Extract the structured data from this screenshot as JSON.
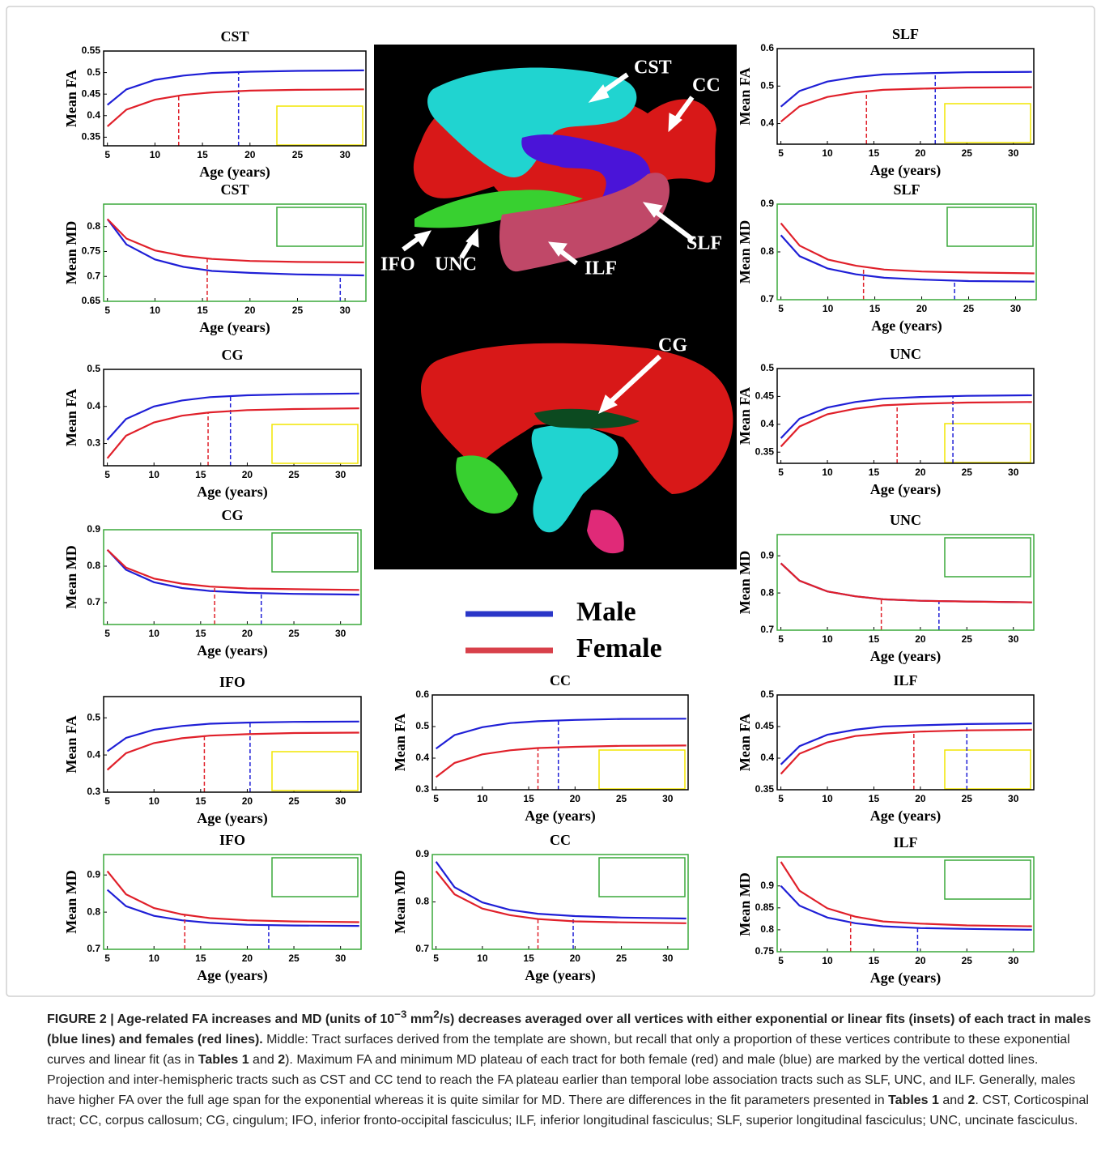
{
  "chart_data": [
    {
      "type": "line",
      "title": "CST",
      "ylabel": "Mean FA",
      "xlabel": "Age (years)",
      "frame": "#000000",
      "inset": "#f2e600",
      "x": [
        5,
        7,
        10,
        13,
        16,
        20,
        25,
        32
      ],
      "xlim": [
        4.6,
        32.2
      ],
      "xticks": [
        5,
        10,
        15,
        20,
        25,
        30
      ],
      "ylim": [
        0.33,
        0.55
      ],
      "yticks": [
        0.35,
        0.4,
        0.45,
        0.5,
        0.55
      ],
      "series": [
        {
          "color": "#1f1fd6",
          "values": [
            0.425,
            0.461,
            0.483,
            0.493,
            0.499,
            0.502,
            0.504,
            0.505
          ],
          "plateau_age": 18.8
        },
        {
          "color": "#e0202a",
          "values": [
            0.375,
            0.414,
            0.437,
            0.448,
            0.454,
            0.458,
            0.46,
            0.461
          ],
          "plateau_age": 12.5
        }
      ]
    },
    {
      "type": "line",
      "title": "CST",
      "ylabel": "Mean MD",
      "xlabel": "Age (years)",
      "frame": "#3aa83a",
      "inset": "#3aa83a",
      "x": [
        5,
        7,
        10,
        13,
        16,
        20,
        25,
        32
      ],
      "xlim": [
        4.6,
        32.2
      ],
      "xticks": [
        5,
        10,
        15,
        20,
        25,
        30
      ],
      "ylim": [
        0.65,
        0.845
      ],
      "yticks": [
        0.65,
        0.7,
        0.75,
        0.8
      ],
      "series": [
        {
          "color": "#1f1fd6",
          "values": [
            0.815,
            0.764,
            0.734,
            0.719,
            0.711,
            0.707,
            0.704,
            0.702
          ],
          "plateau_age": 29.5
        },
        {
          "color": "#e0202a",
          "values": [
            0.815,
            0.776,
            0.752,
            0.741,
            0.735,
            0.731,
            0.729,
            0.728
          ],
          "plateau_age": 15.5
        }
      ]
    },
    {
      "type": "line",
      "title": "CG",
      "ylabel": "Mean FA",
      "xlabel": "Age (years)",
      "frame": "#000000",
      "inset": "#f2e600",
      "x": [
        5,
        7,
        10,
        13,
        16,
        20,
        25,
        32
      ],
      "xlim": [
        4.6,
        32.2
      ],
      "xticks": [
        5,
        10,
        15,
        20,
        25,
        30
      ],
      "ylim": [
        0.24,
        0.5
      ],
      "yticks": [
        0.3,
        0.4,
        0.5
      ],
      "series": [
        {
          "color": "#1f1fd6",
          "values": [
            0.31,
            0.366,
            0.4,
            0.416,
            0.425,
            0.43,
            0.433,
            0.435
          ],
          "plateau_age": 18.2
        },
        {
          "color": "#e0202a",
          "values": [
            0.26,
            0.321,
            0.357,
            0.375,
            0.384,
            0.39,
            0.393,
            0.395
          ],
          "plateau_age": 15.8
        }
      ]
    },
    {
      "type": "line",
      "title": "CG",
      "ylabel": "Mean MD",
      "xlabel": "Age (years)",
      "frame": "#3aa83a",
      "inset": "#3aa83a",
      "x": [
        5,
        7,
        10,
        13,
        16,
        20,
        25,
        32
      ],
      "xlim": [
        4.6,
        32.2
      ],
      "xticks": [
        5,
        10,
        15,
        20,
        25,
        30
      ],
      "ylim": [
        0.64,
        0.9
      ],
      "yticks": [
        0.7,
        0.8,
        0.9
      ],
      "series": [
        {
          "color": "#1f1fd6",
          "values": [
            0.845,
            0.79,
            0.756,
            0.74,
            0.732,
            0.727,
            0.724,
            0.722
          ],
          "plateau_age": 21.5
        },
        {
          "color": "#e0202a",
          "values": [
            0.845,
            0.796,
            0.766,
            0.752,
            0.744,
            0.739,
            0.737,
            0.735
          ],
          "plateau_age": 16.5
        }
      ]
    },
    {
      "type": "line",
      "title": "IFO",
      "ylabel": "Mean FA",
      "xlabel": "Age (years)",
      "frame": "#000000",
      "inset": "#f2e600",
      "x": [
        5,
        7,
        10,
        13,
        16,
        20,
        25,
        32
      ],
      "xlim": [
        4.6,
        32.2
      ],
      "xticks": [
        5,
        10,
        15,
        20,
        25,
        30
      ],
      "ylim": [
        0.3,
        0.557
      ],
      "yticks": [
        0.3,
        0.4,
        0.5
      ],
      "series": [
        {
          "color": "#1f1fd6",
          "values": [
            0.41,
            0.446,
            0.468,
            0.478,
            0.484,
            0.487,
            0.489,
            0.49
          ],
          "plateau_age": 20.3
        },
        {
          "color": "#e0202a",
          "values": [
            0.36,
            0.405,
            0.432,
            0.445,
            0.452,
            0.456,
            0.459,
            0.46
          ],
          "plateau_age": 15.4
        }
      ]
    },
    {
      "type": "line",
      "title": "IFO",
      "ylabel": "Mean MD",
      "xlabel": "Age (years)",
      "frame": "#3aa83a",
      "inset": "#3aa83a",
      "x": [
        5,
        7,
        10,
        13,
        16,
        20,
        25,
        32
      ],
      "xlim": [
        4.6,
        32.2
      ],
      "xticks": [
        5,
        10,
        15,
        20,
        25,
        30
      ],
      "ylim": [
        0.7,
        0.955
      ],
      "yticks": [
        0.7,
        0.8,
        0.9
      ],
      "series": [
        {
          "color": "#1f1fd6",
          "values": [
            0.86,
            0.816,
            0.79,
            0.778,
            0.771,
            0.766,
            0.764,
            0.763
          ],
          "plateau_age": 22.3
        },
        {
          "color": "#e0202a",
          "values": [
            0.91,
            0.848,
            0.811,
            0.794,
            0.784,
            0.778,
            0.775,
            0.773
          ],
          "plateau_age": 13.3
        }
      ]
    },
    {
      "type": "line",
      "title": "CC",
      "ylabel": "Mean FA",
      "xlabel": "Age (years)",
      "frame": "#000000",
      "inset": "#f2e600",
      "x": [
        5,
        7,
        10,
        13,
        16,
        20,
        25,
        32
      ],
      "xlim": [
        4.6,
        32.2
      ],
      "xticks": [
        5,
        10,
        15,
        20,
        25,
        30
      ],
      "ylim": [
        0.3,
        0.6
      ],
      "yticks": [
        0.3,
        0.4,
        0.5,
        0.6
      ],
      "series": [
        {
          "color": "#1f1fd6",
          "values": [
            0.43,
            0.473,
            0.498,
            0.511,
            0.517,
            0.521,
            0.524,
            0.525
          ],
          "plateau_age": 18.2
        },
        {
          "color": "#e0202a",
          "values": [
            0.34,
            0.385,
            0.412,
            0.425,
            0.432,
            0.436,
            0.439,
            0.44
          ],
          "plateau_age": 16
        }
      ]
    },
    {
      "type": "line",
      "title": "CC",
      "ylabel": "Mean MD",
      "xlabel": "Age (years)",
      "frame": "#3aa83a",
      "inset": "#3aa83a",
      "x": [
        5,
        7,
        10,
        13,
        16,
        20,
        25,
        32
      ],
      "xlim": [
        4.6,
        32.2
      ],
      "xticks": [
        5,
        10,
        15,
        20,
        25,
        30
      ],
      "ylim": [
        0.7,
        0.9
      ],
      "yticks": [
        0.7,
        0.8,
        0.9
      ],
      "series": [
        {
          "color": "#1f1fd6",
          "values": [
            0.885,
            0.831,
            0.799,
            0.783,
            0.775,
            0.77,
            0.767,
            0.765
          ],
          "plateau_age": 19.8
        },
        {
          "color": "#e0202a",
          "values": [
            0.865,
            0.816,
            0.786,
            0.772,
            0.764,
            0.759,
            0.757,
            0.755
          ],
          "plateau_age": 16
        }
      ]
    },
    {
      "type": "line",
      "title": "SLF",
      "ylabel": "Mean FA",
      "xlabel": "Age (years)",
      "frame": "#000000",
      "inset": "#f2e600",
      "x": [
        5,
        7,
        10,
        13,
        16,
        20,
        25,
        32
      ],
      "xlim": [
        4.6,
        32.2
      ],
      "xticks": [
        5,
        10,
        15,
        20,
        25,
        30
      ],
      "ylim": [
        0.345,
        0.6
      ],
      "yticks": [
        0.4,
        0.5,
        0.6
      ],
      "series": [
        {
          "color": "#1f1fd6",
          "values": [
            0.445,
            0.487,
            0.512,
            0.524,
            0.531,
            0.534,
            0.537,
            0.538
          ],
          "plateau_age": 21.6
        },
        {
          "color": "#e0202a",
          "values": [
            0.405,
            0.446,
            0.471,
            0.483,
            0.49,
            0.493,
            0.496,
            0.497
          ],
          "plateau_age": 14.2
        }
      ]
    },
    {
      "type": "line",
      "title": "SLF",
      "ylabel": "Mean MD",
      "xlabel": "Age (years)",
      "frame": "#3aa83a",
      "inset": "#3aa83a",
      "x": [
        5,
        7,
        10,
        13,
        16,
        20,
        25,
        32
      ],
      "xlim": [
        4.6,
        32.2
      ],
      "xticks": [
        5,
        10,
        15,
        20,
        25,
        30
      ],
      "ylim": [
        0.7,
        0.9
      ],
      "yticks": [
        0.7,
        0.8,
        0.9
      ],
      "series": [
        {
          "color": "#1f1fd6",
          "values": [
            0.835,
            0.791,
            0.765,
            0.753,
            0.746,
            0.742,
            0.739,
            0.738
          ],
          "plateau_age": 23.5
        },
        {
          "color": "#e0202a",
          "values": [
            0.86,
            0.813,
            0.784,
            0.771,
            0.763,
            0.759,
            0.757,
            0.755
          ],
          "plateau_age": 13.8
        }
      ]
    },
    {
      "type": "line",
      "title": "UNC",
      "ylabel": "Mean FA",
      "xlabel": "Age (years)",
      "frame": "#000000",
      "inset": "#f2e600",
      "x": [
        5,
        7,
        10,
        13,
        16,
        20,
        25,
        32
      ],
      "xlim": [
        4.6,
        32.2
      ],
      "xticks": [
        5,
        10,
        15,
        20,
        25,
        30
      ],
      "ylim": [
        0.33,
        0.5
      ],
      "yticks": [
        0.35,
        0.4,
        0.45,
        0.5
      ],
      "series": [
        {
          "color": "#1f1fd6",
          "values": [
            0.375,
            0.41,
            0.43,
            0.44,
            0.446,
            0.449,
            0.451,
            0.452
          ],
          "plateau_age": 23.5
        },
        {
          "color": "#e0202a",
          "values": [
            0.36,
            0.396,
            0.418,
            0.428,
            0.434,
            0.437,
            0.439,
            0.44
          ],
          "plateau_age": 17.5
        }
      ]
    },
    {
      "type": "line",
      "title": "UNC",
      "ylabel": "Mean MD",
      "xlabel": "Age (years)",
      "frame": "#3aa83a",
      "inset": "#3aa83a",
      "x": [
        5,
        7,
        10,
        13,
        16,
        20,
        25,
        32
      ],
      "xlim": [
        4.6,
        32.2
      ],
      "xticks": [
        5,
        10,
        15,
        20,
        25,
        30
      ],
      "ylim": [
        0.7,
        0.957
      ],
      "yticks": [
        0.7,
        0.8,
        0.9
      ],
      "series": [
        {
          "color": "#1f1fd6",
          "values": [
            0.88,
            0.833,
            0.804,
            0.791,
            0.783,
            0.779,
            0.777,
            0.775
          ],
          "plateau_age": 22
        },
        {
          "color": "#e0202a",
          "values": [
            0.88,
            0.833,
            0.804,
            0.791,
            0.783,
            0.779,
            0.777,
            0.775
          ],
          "plateau_age": 15.8
        }
      ]
    },
    {
      "type": "line",
      "title": "ILF",
      "ylabel": "Mean FA",
      "xlabel": "Age (years)",
      "frame": "#000000",
      "inset": "#f2e600",
      "x": [
        5,
        7,
        10,
        13,
        16,
        20,
        25,
        32
      ],
      "xlim": [
        4.6,
        32.2
      ],
      "xticks": [
        5,
        10,
        15,
        20,
        25,
        30
      ],
      "ylim": [
        0.35,
        0.5
      ],
      "yticks": [
        0.35,
        0.4,
        0.45,
        0.5
      ],
      "series": [
        {
          "color": "#1f1fd6",
          "values": [
            0.39,
            0.419,
            0.437,
            0.445,
            0.45,
            0.452,
            0.454,
            0.455
          ],
          "plateau_age": 25
        },
        {
          "color": "#e0202a",
          "values": [
            0.375,
            0.407,
            0.425,
            0.435,
            0.439,
            0.442,
            0.444,
            0.445
          ],
          "plateau_age": 19.3
        }
      ]
    },
    {
      "type": "line",
      "title": "ILF",
      "ylabel": "Mean MD",
      "xlabel": "Age (years)",
      "frame": "#3aa83a",
      "inset": "#3aa83a",
      "x": [
        5,
        7,
        10,
        13,
        16,
        20,
        25,
        32
      ],
      "xlim": [
        4.6,
        32.2
      ],
      "xticks": [
        5,
        10,
        15,
        20,
        25,
        30
      ],
      "ylim": [
        0.75,
        0.966
      ],
      "yticks": [
        0.75,
        0.8,
        0.85,
        0.9
      ],
      "series": [
        {
          "color": "#1f1fd6",
          "values": [
            0.9,
            0.855,
            0.828,
            0.815,
            0.808,
            0.804,
            0.802,
            0.8
          ],
          "plateau_age": 19.7
        },
        {
          "color": "#e0202a",
          "values": [
            0.955,
            0.889,
            0.849,
            0.83,
            0.819,
            0.814,
            0.81,
            0.808
          ],
          "plateau_age": 12.5
        }
      ]
    }
  ],
  "legend": [
    {
      "name": "Male",
      "color": "#2a36c8"
    },
    {
      "name": "Female",
      "color": "#d8404a"
    }
  ],
  "brain_labels": [
    "CST",
    "CC",
    "SLF",
    "ILF",
    "UNC",
    "IFO",
    "CG"
  ],
  "caption": [
    "FIGURE 2 | Age-related FA increases and MD (units of 10",
    "−3",
    " mm",
    "2",
    "/s) decreases averaged over all vertices with either exponential or linear fits (insets) of each tract in males (blue lines) and females (red lines).",
    " Middle: Tract surfaces derived from the template are shown, but recall that only a proportion of these vertices contribute to these exponential curves and linear fit (as in ",
    "Tables 1",
    " and ",
    "2",
    "). Maximum FA and minimum MD plateau of each tract for both female (red) and male (blue) are marked by the vertical dotted lines. Projection and inter-hemispheric tracts such as CST and CC tend to reach the FA plateau earlier than temporal lobe association tracts such as SLF, UNC, and ILF. Generally, males have higher FA over the full age span for the exponential whereas it is quite similar for MD. There are differences in the fit parameters presented in ",
    "Tables 1",
    " and ",
    "2",
    ". CST, Corticospinal tract; CC, corpus callosum; CG, cingulum; IFO, inferior fronto-occipital fasciculus; ILF, inferior longitudinal fasciculus; SLF, superior longitudinal fasciculus; UNC, uncinate fasciculus."
  ]
}
